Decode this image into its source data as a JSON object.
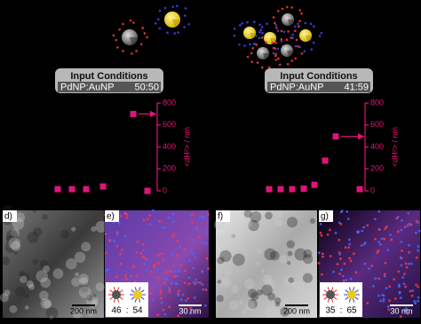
{
  "panels": [
    {
      "input_title": "Input Conditions",
      "input_label": "PdNP:AuNP",
      "input_ratio": "50:50"
    },
    {
      "input_title": "Input Conditions",
      "input_label": "PdNP:AuNP",
      "input_ratio": "41:59"
    }
  ],
  "chart_data": [
    {
      "type": "scatter",
      "y_label": "<dH²> / nm",
      "categories": [
        null,
        null,
        null,
        null,
        null,
        null
      ],
      "values": [
        15,
        15,
        15,
        40,
        700,
        0
      ],
      "color": "#e0147a",
      "ylim": [
        0,
        800
      ],
      "yticks": [
        0,
        200,
        400,
        600,
        800
      ]
    },
    {
      "type": "scatter",
      "y_label": "<dH²> / nm",
      "categories": [
        null,
        null,
        null,
        null,
        null,
        null,
        null,
        null
      ],
      "values": [
        15,
        15,
        15,
        20,
        55,
        275,
        495,
        15
      ],
      "color": "#e0147a",
      "ylim": [
        0,
        800
      ],
      "yticks": [
        0,
        200,
        400,
        600,
        800
      ]
    }
  ],
  "micrographs": [
    {
      "label": "d)",
      "scale": "200 nm"
    },
    {
      "label": "e)",
      "scale": "30 nm",
      "ratio": [
        "46",
        ":",
        "54"
      ]
    },
    {
      "label": "f)",
      "scale": "200 nm"
    },
    {
      "label": "g)",
      "scale": "30 nm",
      "ratio": [
        "35",
        ":",
        "65"
      ]
    }
  ]
}
